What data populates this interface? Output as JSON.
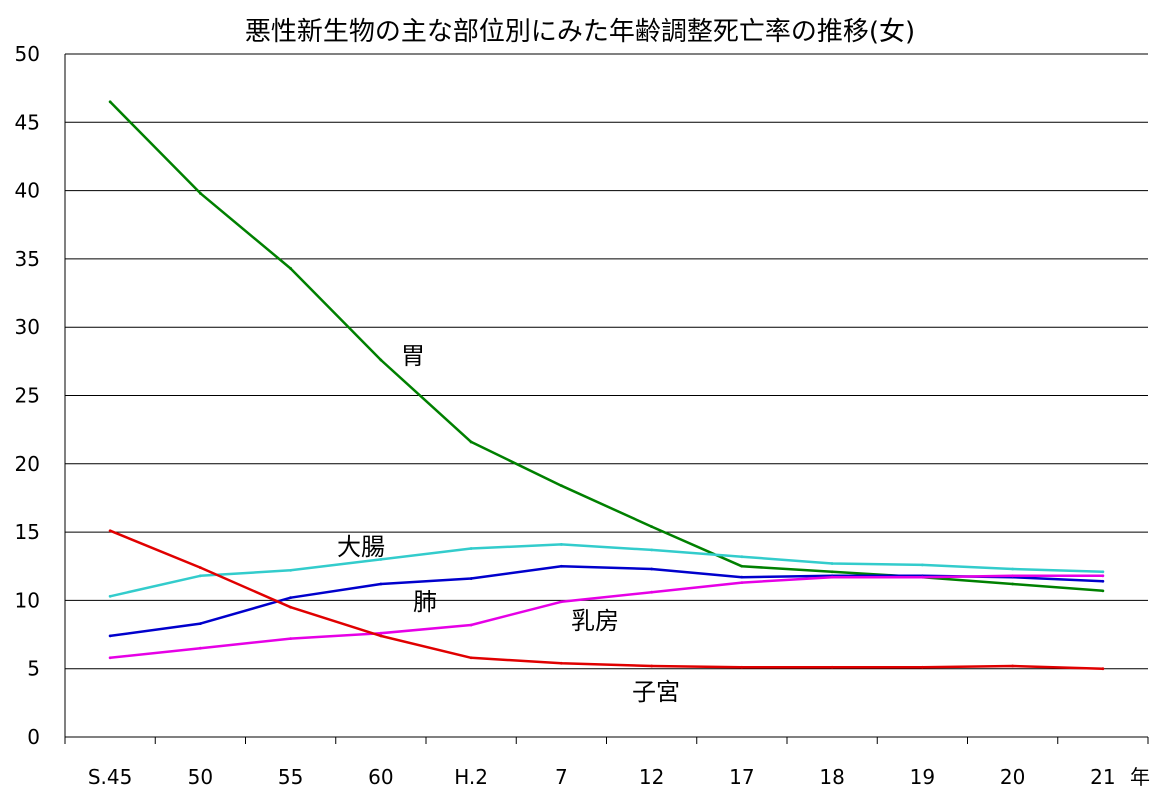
{
  "chart_data": {
    "type": "line",
    "title": "悪性新生物の主な部位別にみた年齢調整死亡率の推移(女)",
    "xlabel": "年",
    "ylabel": "",
    "categories": [
      "S.45",
      "50",
      "55",
      "60",
      "H.2",
      "7",
      "12",
      "17",
      "18",
      "19",
      "20",
      "21"
    ],
    "ylim": [
      0,
      50
    ],
    "yticks": [
      0,
      5,
      10,
      15,
      20,
      25,
      30,
      35,
      40,
      45,
      50
    ],
    "grid": true,
    "legend": "none",
    "series": [
      {
        "name": "胃",
        "color": "#008000",
        "values": [
          46.5,
          39.8,
          34.3,
          27.6,
          21.6,
          18.4,
          15.4,
          12.5,
          12.1,
          11.7,
          11.2,
          10.7
        ]
      },
      {
        "name": "大腸",
        "color": "#33CCCC",
        "values": [
          10.3,
          11.8,
          12.2,
          13.0,
          13.8,
          14.1,
          13.7,
          13.2,
          12.7,
          12.6,
          12.3,
          12.1
        ]
      },
      {
        "name": "肺",
        "color": "#0000CC",
        "values": [
          7.4,
          8.3,
          10.2,
          11.2,
          11.6,
          12.5,
          12.3,
          11.7,
          11.8,
          11.8,
          11.7,
          11.4
        ]
      },
      {
        "name": "乳房",
        "color": "#E600E6",
        "values": [
          5.8,
          6.5,
          7.2,
          7.6,
          8.2,
          9.9,
          10.6,
          11.3,
          11.7,
          11.7,
          11.8,
          11.8
        ]
      },
      {
        "name": "子宮",
        "color": "#E00000",
        "values": [
          15.1,
          12.4,
          9.5,
          7.4,
          5.8,
          5.4,
          5.2,
          5.1,
          5.1,
          5.1,
          5.2,
          5.0
        ]
      }
    ]
  }
}
